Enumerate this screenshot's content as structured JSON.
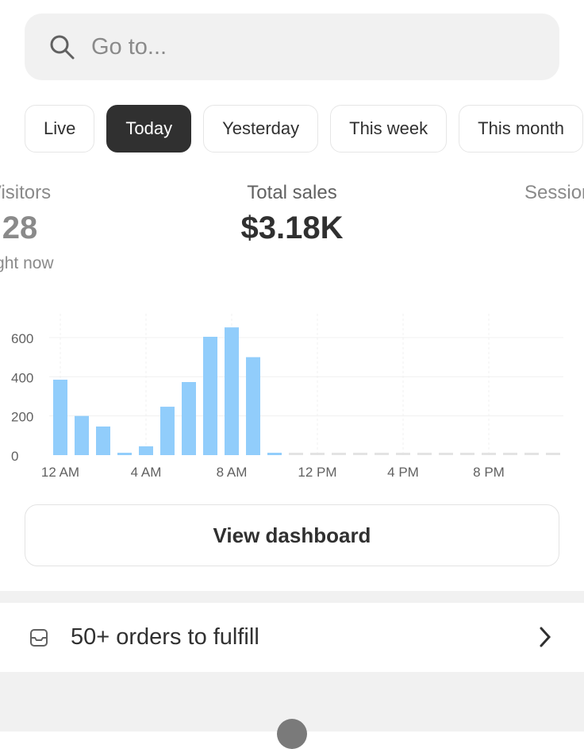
{
  "search": {
    "placeholder": "Go to..."
  },
  "tabs": [
    {
      "label": "Live"
    },
    {
      "label": "Today",
      "active": true
    },
    {
      "label": "Yesterday"
    },
    {
      "label": "This week"
    },
    {
      "label": "This month"
    }
  ],
  "metrics": {
    "visitors": {
      "label": "Visitors",
      "value": "28",
      "sub": "right now"
    },
    "sales": {
      "label": "Total sales",
      "value": "$3.18K"
    },
    "sessions": {
      "label": "Sessions"
    }
  },
  "chart_data": {
    "type": "bar",
    "categories": [
      "12 AM",
      "1 AM",
      "2 AM",
      "3 AM",
      "4 AM",
      "5 AM",
      "6 AM",
      "7 AM",
      "8 AM",
      "9 AM",
      "10 AM",
      "11 AM",
      "12 PM",
      "1 PM",
      "2 PM",
      "3 PM",
      "4 PM",
      "5 PM",
      "6 PM",
      "7 PM",
      "8 PM",
      "9 PM",
      "10 PM",
      "11 PM"
    ],
    "values": [
      385,
      200,
      146,
      12,
      45,
      247,
      373,
      604,
      652,
      500,
      12,
      0,
      0,
      0,
      0,
      0,
      0,
      0,
      0,
      0,
      0,
      0,
      0,
      0
    ],
    "xticks": [
      "12 AM",
      "4 AM",
      "8 AM",
      "12 PM",
      "4 PM",
      "8 PM"
    ],
    "yticks": [
      "0",
      "200",
      "400",
      "600"
    ],
    "ylim": [
      0,
      700
    ],
    "grid": true,
    "color": "#91cdfb",
    "empty_color": "#e3e3e3"
  },
  "dashboard_button": "View dashboard",
  "orders": {
    "label": "50+ orders to fulfill",
    "icon": "inbox-icon"
  }
}
